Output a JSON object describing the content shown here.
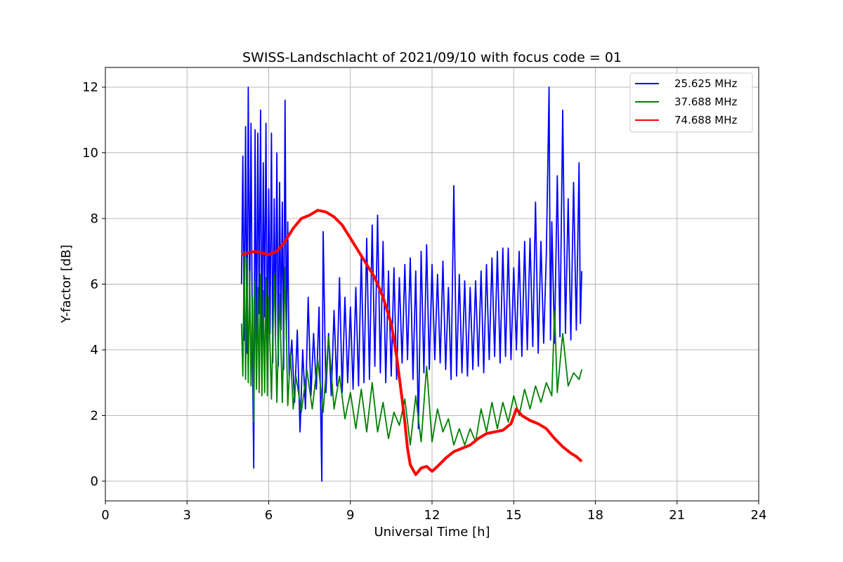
{
  "chart_data": {
    "type": "line",
    "title": "SWISS-Landschlacht of 2021/09/10 with focus code = 01",
    "xlabel": "Universal Time [h]",
    "ylabel": "Y-factor [dB]",
    "xlim": [
      0,
      24
    ],
    "ylim": [
      -0.6,
      12.6
    ],
    "xticks": [
      0,
      3,
      6,
      9,
      12,
      15,
      18,
      21,
      24
    ],
    "yticks": [
      0,
      2,
      4,
      6,
      8,
      10,
      12
    ],
    "grid": true,
    "legend_position": "top-right",
    "series": [
      {
        "name": "25.625 MHz",
        "color": "#0000ff",
        "points": [
          [
            5.0,
            6.0
          ],
          [
            5.05,
            9.9
          ],
          [
            5.1,
            4.3
          ],
          [
            5.15,
            10.8
          ],
          [
            5.2,
            3.9
          ],
          [
            5.25,
            12.0
          ],
          [
            5.3,
            5.2
          ],
          [
            5.35,
            10.9
          ],
          [
            5.4,
            4.0
          ],
          [
            5.45,
            0.4
          ],
          [
            5.5,
            10.7
          ],
          [
            5.55,
            3.6
          ],
          [
            5.6,
            10.6
          ],
          [
            5.65,
            5.1
          ],
          [
            5.7,
            11.3
          ],
          [
            5.75,
            3.4
          ],
          [
            5.8,
            9.7
          ],
          [
            5.85,
            5.0
          ],
          [
            5.9,
            10.9
          ],
          [
            5.95,
            3.5
          ],
          [
            6.0,
            8.9
          ],
          [
            6.05,
            4.5
          ],
          [
            6.1,
            10.6
          ],
          [
            6.15,
            3.6
          ],
          [
            6.2,
            8.6
          ],
          [
            6.25,
            4.4
          ],
          [
            6.3,
            10.0
          ],
          [
            6.35,
            3.5
          ],
          [
            6.4,
            9.1
          ],
          [
            6.45,
            4.6
          ],
          [
            6.5,
            8.5
          ],
          [
            6.55,
            3.4
          ],
          [
            6.6,
            11.6
          ],
          [
            6.65,
            4.3
          ],
          [
            6.7,
            7.9
          ],
          [
            6.75,
            3.2
          ],
          [
            6.85,
            4.3
          ],
          [
            6.95,
            2.4
          ],
          [
            7.05,
            4.6
          ],
          [
            7.15,
            1.5
          ],
          [
            7.25,
            4.0
          ],
          [
            7.35,
            2.2
          ],
          [
            7.45,
            5.6
          ],
          [
            7.55,
            2.6
          ],
          [
            7.65,
            4.5
          ],
          [
            7.75,
            2.8
          ],
          [
            7.85,
            5.3
          ],
          [
            7.95,
            0.0
          ],
          [
            8.0,
            7.6
          ],
          [
            8.1,
            2.7
          ],
          [
            8.2,
            4.5
          ],
          [
            8.3,
            2.6
          ],
          [
            8.4,
            5.2
          ],
          [
            8.5,
            2.9
          ],
          [
            8.6,
            6.2
          ],
          [
            8.7,
            2.7
          ],
          [
            8.8,
            5.6
          ],
          [
            8.9,
            3.0
          ],
          [
            9.0,
            5.3
          ],
          [
            9.1,
            2.8
          ],
          [
            9.2,
            5.9
          ],
          [
            9.3,
            2.9
          ],
          [
            9.4,
            6.9
          ],
          [
            9.5,
            3.0
          ],
          [
            9.6,
            7.4
          ],
          [
            9.7,
            3.1
          ],
          [
            9.8,
            7.8
          ],
          [
            9.9,
            3.5
          ],
          [
            10.0,
            8.1
          ],
          [
            10.1,
            3.3
          ],
          [
            10.2,
            7.3
          ],
          [
            10.3,
            3.0
          ],
          [
            10.4,
            6.4
          ],
          [
            10.5,
            3.2
          ],
          [
            10.6,
            6.5
          ],
          [
            10.7,
            3.1
          ],
          [
            10.8,
            6.2
          ],
          [
            10.9,
            3.6
          ],
          [
            11.0,
            6.6
          ],
          [
            11.1,
            3.7
          ],
          [
            11.2,
            6.8
          ],
          [
            11.3,
            3.1
          ],
          [
            11.4,
            6.4
          ],
          [
            11.5,
            1.6
          ],
          [
            11.6,
            7.0
          ],
          [
            11.7,
            3.3
          ],
          [
            11.8,
            7.2
          ],
          [
            11.9,
            3.4
          ],
          [
            12.0,
            6.6
          ],
          [
            12.1,
            3.7
          ],
          [
            12.2,
            6.3
          ],
          [
            12.3,
            3.6
          ],
          [
            12.4,
            6.7
          ],
          [
            12.5,
            3.4
          ],
          [
            12.6,
            5.9
          ],
          [
            12.7,
            3.1
          ],
          [
            12.8,
            9.0
          ],
          [
            12.9,
            3.2
          ],
          [
            13.0,
            6.3
          ],
          [
            13.1,
            3.3
          ],
          [
            13.2,
            6.1
          ],
          [
            13.3,
            3.2
          ],
          [
            13.4,
            5.9
          ],
          [
            13.5,
            3.4
          ],
          [
            13.6,
            6.1
          ],
          [
            13.7,
            3.5
          ],
          [
            13.8,
            6.4
          ],
          [
            13.9,
            3.3
          ],
          [
            14.0,
            6.6
          ],
          [
            14.1,
            3.7
          ],
          [
            14.2,
            6.8
          ],
          [
            14.3,
            3.8
          ],
          [
            14.4,
            7.0
          ],
          [
            14.5,
            3.6
          ],
          [
            14.6,
            7.1
          ],
          [
            14.7,
            3.8
          ],
          [
            14.8,
            7.1
          ],
          [
            14.9,
            3.7
          ],
          [
            15.0,
            6.5
          ],
          [
            15.1,
            4.0
          ],
          [
            15.2,
            7.0
          ],
          [
            15.3,
            3.8
          ],
          [
            15.4,
            7.3
          ],
          [
            15.5,
            4.0
          ],
          [
            15.6,
            7.4
          ],
          [
            15.7,
            4.1
          ],
          [
            15.8,
            8.5
          ],
          [
            15.9,
            3.9
          ],
          [
            16.0,
            7.3
          ],
          [
            16.1,
            4.2
          ],
          [
            16.2,
            6.9
          ],
          [
            16.3,
            12.0
          ],
          [
            16.35,
            4.3
          ],
          [
            16.4,
            7.9
          ],
          [
            16.5,
            4.2
          ],
          [
            16.6,
            9.3
          ],
          [
            16.7,
            4.4
          ],
          [
            16.8,
            11.3
          ],
          [
            16.9,
            4.5
          ],
          [
            17.0,
            8.6
          ],
          [
            17.1,
            4.3
          ],
          [
            17.2,
            9.1
          ],
          [
            17.3,
            4.6
          ],
          [
            17.4,
            9.7
          ],
          [
            17.45,
            4.8
          ],
          [
            17.5,
            6.4
          ]
        ]
      },
      {
        "name": "37.688 MHz",
        "color": "#008000",
        "points": [
          [
            5.0,
            4.8
          ],
          [
            5.05,
            3.2
          ],
          [
            5.1,
            7.0
          ],
          [
            5.15,
            3.1
          ],
          [
            5.2,
            6.8
          ],
          [
            5.25,
            3.0
          ],
          [
            5.3,
            6.4
          ],
          [
            5.35,
            2.9
          ],
          [
            5.4,
            5.6
          ],
          [
            5.45,
            1.8
          ],
          [
            5.5,
            6.1
          ],
          [
            5.55,
            2.8
          ],
          [
            5.6,
            5.9
          ],
          [
            5.65,
            2.7
          ],
          [
            5.7,
            6.3
          ],
          [
            5.75,
            2.6
          ],
          [
            5.8,
            5.8
          ],
          [
            5.85,
            2.7
          ],
          [
            5.9,
            6.2
          ],
          [
            5.95,
            2.6
          ],
          [
            6.0,
            5.6
          ],
          [
            6.1,
            2.5
          ],
          [
            6.2,
            6.3
          ],
          [
            6.3,
            2.4
          ],
          [
            6.4,
            5.7
          ],
          [
            6.5,
            2.4
          ],
          [
            6.6,
            6.5
          ],
          [
            6.7,
            2.3
          ],
          [
            6.8,
            3.9
          ],
          [
            6.9,
            2.2
          ],
          [
            7.0,
            3.2
          ],
          [
            7.2,
            2.1
          ],
          [
            7.4,
            3.4
          ],
          [
            7.6,
            2.2
          ],
          [
            7.8,
            3.7
          ],
          [
            8.0,
            2.1
          ],
          [
            8.2,
            4.4
          ],
          [
            8.4,
            2.2
          ],
          [
            8.6,
            3.2
          ],
          [
            8.8,
            1.9
          ],
          [
            9.0,
            2.7
          ],
          [
            9.2,
            1.6
          ],
          [
            9.4,
            2.8
          ],
          [
            9.6,
            1.5
          ],
          [
            9.8,
            3.0
          ],
          [
            10.0,
            1.5
          ],
          [
            10.2,
            2.4
          ],
          [
            10.4,
            1.3
          ],
          [
            10.6,
            2.1
          ],
          [
            10.8,
            1.7
          ],
          [
            11.0,
            2.5
          ],
          [
            11.2,
            1.1
          ],
          [
            11.4,
            2.6
          ],
          [
            11.6,
            1.2
          ],
          [
            11.8,
            3.5
          ],
          [
            12.0,
            1.2
          ],
          [
            12.2,
            2.2
          ],
          [
            12.4,
            1.5
          ],
          [
            12.6,
            1.9
          ],
          [
            12.8,
            1.1
          ],
          [
            13.0,
            1.6
          ],
          [
            13.2,
            1.1
          ],
          [
            13.4,
            1.6
          ],
          [
            13.6,
            1.2
          ],
          [
            13.8,
            2.2
          ],
          [
            14.0,
            1.5
          ],
          [
            14.2,
            2.4
          ],
          [
            14.4,
            1.6
          ],
          [
            14.6,
            2.4
          ],
          [
            14.8,
            1.8
          ],
          [
            15.0,
            2.6
          ],
          [
            15.2,
            2.0
          ],
          [
            15.4,
            2.8
          ],
          [
            15.6,
            2.2
          ],
          [
            15.8,
            2.9
          ],
          [
            16.0,
            2.4
          ],
          [
            16.2,
            3.0
          ],
          [
            16.4,
            2.6
          ],
          [
            16.5,
            5.2
          ],
          [
            16.6,
            2.7
          ],
          [
            16.8,
            4.5
          ],
          [
            17.0,
            2.9
          ],
          [
            17.2,
            3.3
          ],
          [
            17.4,
            3.1
          ],
          [
            17.5,
            3.4
          ]
        ]
      },
      {
        "name": "74.688 MHz",
        "color": "#ff0000",
        "points": [
          [
            5.0,
            6.9
          ],
          [
            5.5,
            7.0
          ],
          [
            6.0,
            6.9
          ],
          [
            6.3,
            7.0
          ],
          [
            6.6,
            7.3
          ],
          [
            6.9,
            7.7
          ],
          [
            7.2,
            8.0
          ],
          [
            7.5,
            8.1
          ],
          [
            7.8,
            8.25
          ],
          [
            8.1,
            8.2
          ],
          [
            8.4,
            8.05
          ],
          [
            8.7,
            7.8
          ],
          [
            9.0,
            7.4
          ],
          [
            9.3,
            7.0
          ],
          [
            9.6,
            6.6
          ],
          [
            9.9,
            6.2
          ],
          [
            10.2,
            5.6
          ],
          [
            10.5,
            4.8
          ],
          [
            10.7,
            3.8
          ],
          [
            10.9,
            2.5
          ],
          [
            11.0,
            1.8
          ],
          [
            11.1,
            1.0
          ],
          [
            11.2,
            0.5
          ],
          [
            11.4,
            0.2
          ],
          [
            11.6,
            0.4
          ],
          [
            11.8,
            0.45
          ],
          [
            12.0,
            0.3
          ],
          [
            12.2,
            0.45
          ],
          [
            12.5,
            0.7
          ],
          [
            12.8,
            0.9
          ],
          [
            13.1,
            1.0
          ],
          [
            13.4,
            1.1
          ],
          [
            13.7,
            1.3
          ],
          [
            14.0,
            1.45
          ],
          [
            14.3,
            1.5
          ],
          [
            14.6,
            1.55
          ],
          [
            14.9,
            1.75
          ],
          [
            15.1,
            2.2
          ],
          [
            15.3,
            2.0
          ],
          [
            15.6,
            1.85
          ],
          [
            15.9,
            1.75
          ],
          [
            16.2,
            1.6
          ],
          [
            16.5,
            1.3
          ],
          [
            16.8,
            1.05
          ],
          [
            17.1,
            0.85
          ],
          [
            17.3,
            0.75
          ],
          [
            17.5,
            0.6
          ]
        ]
      }
    ]
  }
}
